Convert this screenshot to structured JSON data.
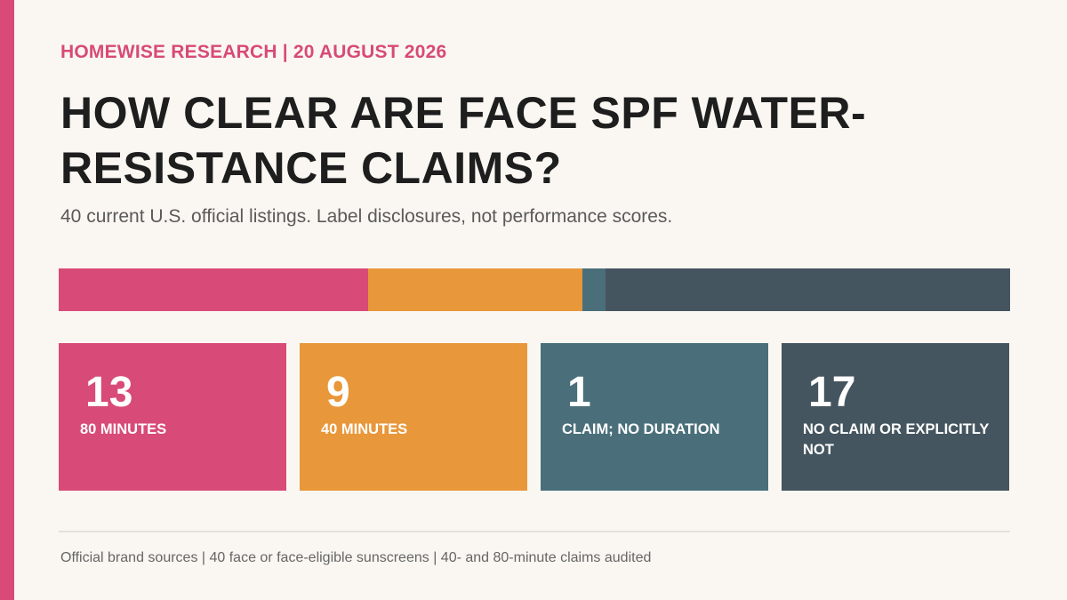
{
  "kicker": "HOMEWISE RESEARCH | 20 AUGUST 2026",
  "title": "HOW CLEAR ARE FACE SPF WATER-RESISTANCE CLAIMS?",
  "subtitle": "40 current U.S. official listings. Label disclosures, not performance scores.",
  "footer": "Official brand sources | 40 face or face-eligible sunscreens | 40- and 80-minute claims audited",
  "colors": {
    "accent": "#d84a77",
    "series": [
      "#d84a77",
      "#e8973a",
      "#4a6f7a",
      "#45555f"
    ]
  },
  "chart_data": {
    "type": "bar",
    "stacked": true,
    "categories": [
      "80 MINUTES",
      "40 MINUTES",
      "CLAIM; NO DURATION",
      "NO CLAIM OR EXPLICITLY NOT"
    ],
    "values": [
      13,
      9,
      1,
      17
    ],
    "total": 40,
    "title": "HOW CLEAR ARE FACE SPF WATER-RESISTANCE CLAIMS?",
    "xlabel": "",
    "ylabel": "",
    "grid": false
  }
}
